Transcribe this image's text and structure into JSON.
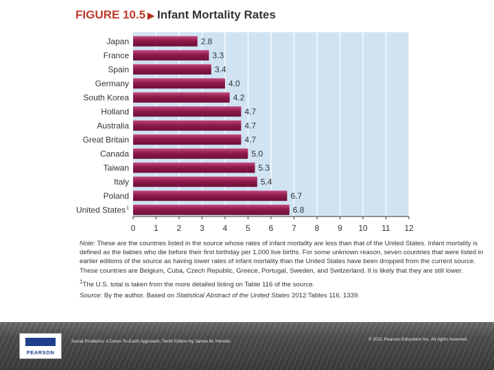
{
  "figure": {
    "label": "FIGURE 10.5",
    "arrow": "▶",
    "name": "Infant Mortality Rates"
  },
  "chart_data": {
    "type": "bar",
    "orientation": "horizontal",
    "title": "Infant Mortality Rates",
    "categories": [
      "Japan",
      "France",
      "Spain",
      "Germany",
      "South Korea",
      "Holland",
      "Australia",
      "Great Britain",
      "Canada",
      "Taiwan",
      "Italy",
      "Poland",
      "United States"
    ],
    "category_footnote": {
      "United States": "1"
    },
    "values": [
      2.8,
      3.3,
      3.4,
      4.0,
      4.2,
      4.7,
      4.7,
      4.7,
      5.0,
      5.3,
      5.4,
      6.7,
      6.8
    ],
    "value_labels": [
      "2.8",
      "3.3",
      "3.4",
      "4.0",
      "4.2",
      "4.7",
      "4.7",
      "4.7",
      "5.0",
      "5.3",
      "5.4",
      "6.7",
      "6.8"
    ],
    "xlim": [
      0,
      12
    ],
    "xticks": [
      "0",
      "1",
      "2",
      "3",
      "4",
      "5",
      "6",
      "7",
      "8",
      "9",
      "10",
      "11",
      "12"
    ],
    "grid": true,
    "xlabel": "",
    "ylabel": "",
    "colors": {
      "bar": "#8e1a4b",
      "bar_light": "#c2487d",
      "background": "#cfe3f3",
      "gridline": "#ffffff",
      "axis": "#333333"
    }
  },
  "notes": {
    "note_label": "Note:",
    "note_text": "These are the countries listed in the source whose rates of infant mortality are less than that of the United States. Infant mortality is defined as the babies who die before their first birthday per 1,000 live births. For some unknown reason, seven countries that were listed in earlier editions of the source as having lower rates of infant mortality than the United States have been dropped from the current source. These countries are Belgium, Cuba, Czech Republic, Greece, Portugal, Sweden, and Switzerland. It is likely that they are still lower.",
    "footnote_mark": "1",
    "footnote_text": "The U.S. total is taken from the more detailed listing on Table 116 of the source.",
    "source_label": "Source:",
    "source_prefix": "By the author. Based on",
    "source_title": "Statistical Abstract of the United States",
    "source_suffix": "2012:Tables 116, 1339."
  },
  "footer": {
    "logo_text": "PEARSON",
    "book_caption": "Social Problems: A Down-To-Earth Approach, Tenth Edition by James M. Henslin",
    "copyright": "© 2011 Pearson Education Inc. All rights reserved."
  }
}
